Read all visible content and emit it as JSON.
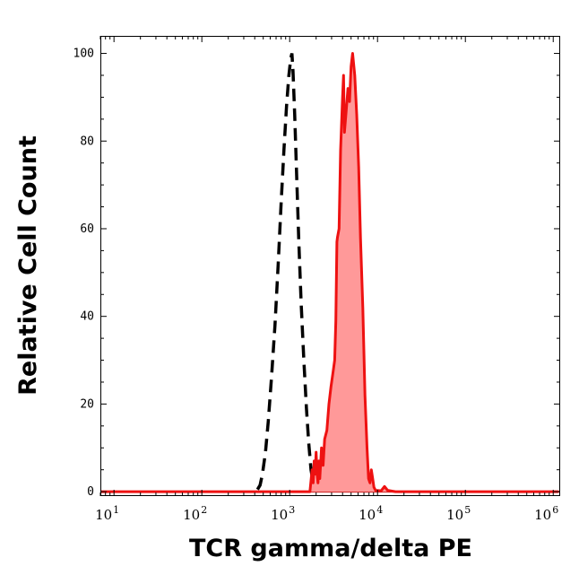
{
  "chart_data": {
    "type": "area",
    "xlabel": "TCR gamma/delta PE",
    "ylabel": "Relative Cell Count",
    "xscale": "log",
    "xlim": [
      7,
      1200000
    ],
    "ylim": [
      -1,
      104
    ],
    "yticks": [
      0,
      20,
      40,
      60,
      80,
      100
    ],
    "yticklabels": [
      "0",
      "20",
      "40",
      "60",
      "80",
      "100"
    ],
    "xticks": [
      {
        "base": "10",
        "exp": "1",
        "value": 10
      },
      {
        "base": "10",
        "exp": "2",
        "value": 100
      },
      {
        "base": "10",
        "exp": "3",
        "value": 1000
      },
      {
        "base": "10",
        "exp": "4",
        "value": 10000
      },
      {
        "base": "10",
        "exp": "5",
        "value": 100000
      },
      {
        "base": "10",
        "exp": "6",
        "value": 1000000
      }
    ],
    "grid": false,
    "legend": "none",
    "series": [
      {
        "style": "dashed-black-outline",
        "color": "#000000",
        "points": [
          [
            430,
            0.5
          ],
          [
            460,
            1.5
          ],
          [
            490,
            4
          ],
          [
            530,
            9
          ],
          [
            570,
            16
          ],
          [
            620,
            26
          ],
          [
            680,
            38
          ],
          [
            740,
            52
          ],
          [
            800,
            66
          ],
          [
            860,
            78
          ],
          [
            920,
            88
          ],
          [
            980,
            95
          ],
          [
            1030,
            99
          ],
          [
            1060,
            100
          ],
          [
            1090,
            96
          ],
          [
            1140,
            86
          ],
          [
            1200,
            72
          ],
          [
            1270,
            57
          ],
          [
            1350,
            43
          ],
          [
            1450,
            30
          ],
          [
            1550,
            19
          ],
          [
            1650,
            11
          ],
          [
            1750,
            5
          ],
          [
            1850,
            2
          ],
          [
            1950,
            0.5
          ]
        ]
      },
      {
        "style": "filled-red",
        "color": "#ee1111",
        "fill": "#ff9999",
        "points": [
          [
            7,
            0
          ],
          [
            1700,
            0
          ],
          [
            1800,
            5
          ],
          [
            1850,
            2
          ],
          [
            1900,
            7
          ],
          [
            1950,
            4
          ],
          [
            2000,
            9
          ],
          [
            2050,
            4
          ],
          [
            2100,
            2
          ],
          [
            2150,
            7
          ],
          [
            2200,
            3
          ],
          [
            2300,
            10
          ],
          [
            2400,
            6
          ],
          [
            2500,
            12
          ],
          [
            2650,
            14
          ],
          [
            2800,
            20
          ],
          [
            2950,
            24
          ],
          [
            3100,
            27
          ],
          [
            3250,
            30
          ],
          [
            3350,
            39
          ],
          [
            3450,
            57
          ],
          [
            3500,
            58
          ],
          [
            3650,
            60
          ],
          [
            3800,
            78
          ],
          [
            4000,
            90
          ],
          [
            4100,
            95
          ],
          [
            4200,
            82
          ],
          [
            4400,
            87
          ],
          [
            4600,
            92
          ],
          [
            4800,
            89
          ],
          [
            5000,
            97
          ],
          [
            5200,
            100
          ],
          [
            5500,
            95
          ],
          [
            5800,
            86
          ],
          [
            6100,
            74
          ],
          [
            6400,
            58
          ],
          [
            6800,
            42
          ],
          [
            7200,
            22
          ],
          [
            7600,
            10
          ],
          [
            7900,
            3
          ],
          [
            8200,
            2
          ],
          [
            8500,
            5
          ],
          [
            8800,
            3
          ],
          [
            9100,
            1
          ],
          [
            9500,
            0.3
          ],
          [
            11000,
            0.2
          ],
          [
            12000,
            1.2
          ],
          [
            13000,
            0.3
          ],
          [
            16000,
            0
          ],
          [
            1150000,
            0
          ]
        ]
      }
    ]
  }
}
